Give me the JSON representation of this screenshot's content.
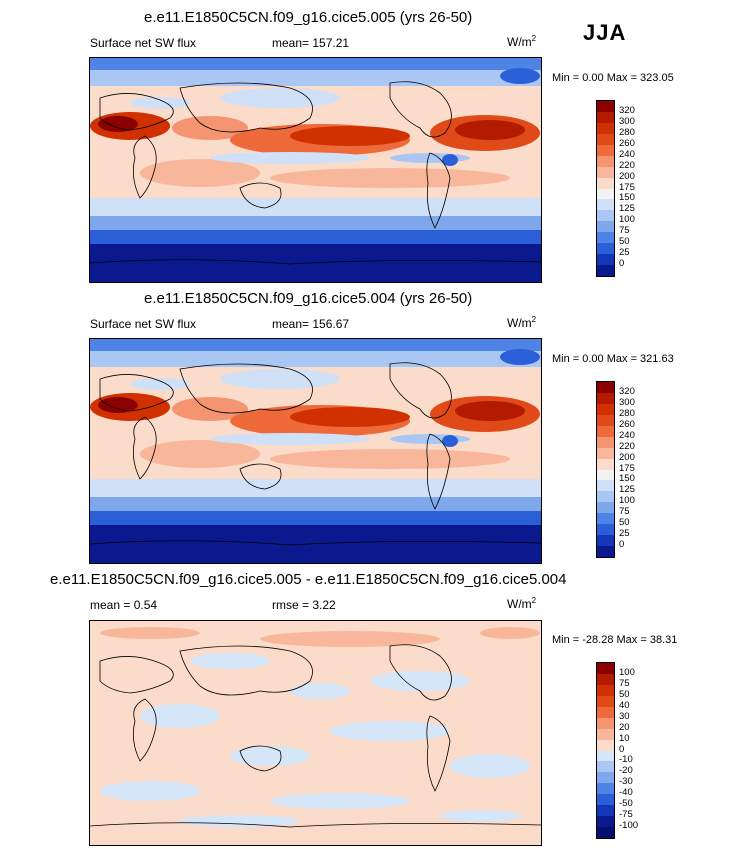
{
  "season": "JJA",
  "panels": [
    {
      "id": "p1",
      "title": "e.e11.E1850C5CN.f09_g16.cice5.005 (yrs 26-50)",
      "variable": "Surface net SW flux",
      "stat_left": "",
      "mean_text": "mean= 157.21",
      "units_base": "W/m",
      "units_exp": "2",
      "minmax": "Min =   0.00 Max = 323.05",
      "kind": "abs"
    },
    {
      "id": "p2",
      "title": "e.e11.E1850C5CN.f09_g16.cice5.004 (yrs 26-50)",
      "variable": "Surface net SW flux",
      "stat_left": "",
      "mean_text": "mean= 156.67",
      "units_base": "W/m",
      "units_exp": "2",
      "minmax": "Min =   0.00 Max = 321.63",
      "kind": "abs"
    },
    {
      "id": "p3",
      "title": "e.e11.E1850C5CN.f09_g16.cice5.005 - e.e11.E1850C5CN.f09_g16.cice5.004",
      "variable": "mean =   0.54",
      "stat_left": "",
      "mean_text": "rmse =   3.22",
      "units_base": "W/m",
      "units_exp": "2",
      "minmax": "Min = -28.28 Max =  38.31",
      "kind": "diff"
    }
  ],
  "colorbar_abs": {
    "labels": [
      "320",
      "300",
      "280",
      "260",
      "240",
      "220",
      "200",
      "175",
      "150",
      "125",
      "100",
      "75",
      "50",
      "25",
      "0"
    ],
    "colors": [
      "#8b0000",
      "#b31b00",
      "#d13000",
      "#e04a18",
      "#ee6a3a",
      "#f59470",
      "#f8b79a",
      "#fbdccb",
      "#f2f2f2",
      "#cfe0f7",
      "#a9c7f2",
      "#7fa8ec",
      "#4f84e6",
      "#2a5fd8",
      "#1437b8",
      "#0a1a8e"
    ]
  },
  "colorbar_diff": {
    "labels": [
      "100",
      "75",
      "50",
      "40",
      "30",
      "20",
      "10",
      "0",
      "-10",
      "-20",
      "-30",
      "-40",
      "-50",
      "-75",
      "-100"
    ],
    "colors": [
      "#8b0000",
      "#b31b00",
      "#d13000",
      "#e04a18",
      "#ee6a3a",
      "#f59470",
      "#f8b79a",
      "#fbdccb",
      "#d6e6f9",
      "#a9c7f2",
      "#7fa8ec",
      "#4f84e6",
      "#2a5fd8",
      "#1437b8",
      "#0a1a8e",
      "#050f6e"
    ]
  },
  "chart_data": [
    {
      "type": "heatmap",
      "title": "e.e11.E1850C5CN.f09_g16.cice5.005 (yrs 26-50)",
      "variable": "Surface net SW flux",
      "units": "W/m2",
      "mean": 157.21,
      "min": 0.0,
      "max": 323.05,
      "levels": [
        0,
        25,
        50,
        75,
        100,
        125,
        150,
        175,
        200,
        220,
        240,
        260,
        280,
        300,
        320
      ]
    },
    {
      "type": "heatmap",
      "title": "e.e11.E1850C5CN.f09_g16.cice5.004 (yrs 26-50)",
      "variable": "Surface net SW flux",
      "units": "W/m2",
      "mean": 156.67,
      "min": 0.0,
      "max": 321.63,
      "levels": [
        0,
        25,
        50,
        75,
        100,
        125,
        150,
        175,
        200,
        220,
        240,
        260,
        280,
        300,
        320
      ]
    },
    {
      "type": "heatmap",
      "title": "e.e11.E1850C5CN.f09_g16.cice5.005 - e.e11.E1850C5CN.f09_g16.cice5.004",
      "units": "W/m2",
      "mean": 0.54,
      "rmse": 3.22,
      "min": -28.28,
      "max": 38.31,
      "levels": [
        -100,
        -75,
        -50,
        -40,
        -30,
        -20,
        -10,
        0,
        10,
        20,
        30,
        40,
        50,
        75,
        100
      ]
    }
  ]
}
